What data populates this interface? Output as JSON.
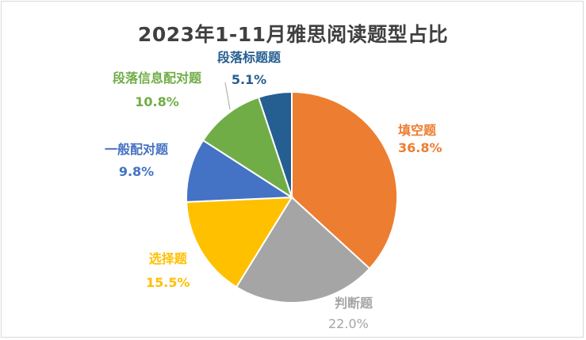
{
  "chart_data": {
    "type": "pie",
    "title": "2023年1-11月雅思阅读题型占比",
    "slices": [
      {
        "label": "填空题",
        "value": 36.8,
        "value_label": "36.8%",
        "color": "#ED7D31"
      },
      {
        "label": "判断题",
        "value": 22.0,
        "value_label": "22.0%",
        "color": "#A5A5A5"
      },
      {
        "label": "选择题",
        "value": 15.5,
        "value_label": "15.5%",
        "color": "#FFC000"
      },
      {
        "label": "一般配对题",
        "value": 9.8,
        "value_label": "9.8%",
        "color": "#4472C4"
      },
      {
        "label": "段落信息配对题",
        "value": 10.8,
        "value_label": "10.8%",
        "color": "#70AD47"
      },
      {
        "label": "段落标题题",
        "value": 5.1,
        "value_label": "5.1%",
        "color": "#255E91"
      }
    ],
    "legend": "none"
  }
}
